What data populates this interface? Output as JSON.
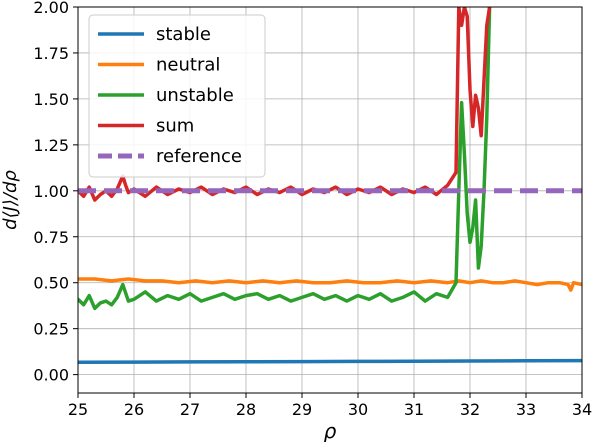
{
  "chart_data": {
    "type": "line",
    "title": "",
    "xlabel": "ρ",
    "ylabel": "d⟨J⟩/dρ",
    "xlim": [
      25,
      34
    ],
    "ylim": [
      -0.1,
      2.0
    ],
    "xticks": [
      25,
      26,
      27,
      28,
      29,
      30,
      31,
      32,
      33,
      34
    ],
    "yticks": [
      0.0,
      0.25,
      0.5,
      0.75,
      1.0,
      1.25,
      1.5,
      1.75,
      2.0
    ],
    "xtick_labels": [
      "25",
      "26",
      "27",
      "28",
      "29",
      "30",
      "31",
      "32",
      "33",
      "34"
    ],
    "ytick_labels": [
      "0.00",
      "0.25",
      "0.50",
      "0.75",
      "1.00",
      "1.25",
      "1.50",
      "1.75",
      "2.00"
    ],
    "grid": true,
    "legend_position": "top-left",
    "series": [
      {
        "name": "stable",
        "color": "#1f77b4",
        "style": "solid",
        "x": [
          25.0,
          26.0,
          27.0,
          28.0,
          29.0,
          30.0,
          31.0,
          32.0,
          33.0,
          34.0
        ],
        "y": [
          0.067,
          0.068,
          0.069,
          0.07,
          0.071,
          0.072,
          0.073,
          0.074,
          0.075,
          0.076
        ]
      },
      {
        "name": "neutral",
        "color": "#ff7f0e",
        "style": "solid",
        "x": [
          25.0,
          25.3,
          25.6,
          25.9,
          26.2,
          26.5,
          26.8,
          27.1,
          27.4,
          27.7,
          28.0,
          28.3,
          28.6,
          28.9,
          29.2,
          29.5,
          29.8,
          30.1,
          30.4,
          30.7,
          31.0,
          31.3,
          31.6,
          31.8,
          32.0,
          32.2,
          32.4,
          32.6,
          32.8,
          33.0,
          33.2,
          33.4,
          33.6,
          33.75,
          33.8,
          33.85,
          34.0
        ],
        "y": [
          0.52,
          0.52,
          0.51,
          0.52,
          0.51,
          0.51,
          0.5,
          0.51,
          0.5,
          0.51,
          0.5,
          0.51,
          0.5,
          0.51,
          0.5,
          0.5,
          0.51,
          0.5,
          0.5,
          0.51,
          0.5,
          0.51,
          0.5,
          0.51,
          0.5,
          0.51,
          0.5,
          0.5,
          0.51,
          0.5,
          0.49,
          0.5,
          0.5,
          0.49,
          0.46,
          0.5,
          0.49
        ]
      },
      {
        "name": "unstable",
        "color": "#2ca02c",
        "style": "solid",
        "x": [
          25.0,
          25.1,
          25.2,
          25.3,
          25.4,
          25.5,
          25.6,
          25.7,
          25.8,
          25.9,
          26.0,
          26.2,
          26.4,
          26.6,
          26.8,
          27.0,
          27.2,
          27.4,
          27.6,
          27.8,
          28.0,
          28.2,
          28.4,
          28.6,
          28.8,
          29.0,
          29.2,
          29.4,
          29.6,
          29.8,
          30.0,
          30.2,
          30.4,
          30.6,
          30.8,
          31.0,
          31.2,
          31.4,
          31.6,
          31.75,
          31.8,
          31.85,
          31.9,
          31.95,
          32.0,
          32.05,
          32.1,
          32.15,
          32.2,
          32.25,
          32.3,
          32.35
        ],
        "y": [
          0.41,
          0.38,
          0.43,
          0.36,
          0.39,
          0.4,
          0.38,
          0.42,
          0.49,
          0.4,
          0.41,
          0.45,
          0.4,
          0.43,
          0.41,
          0.44,
          0.4,
          0.42,
          0.44,
          0.41,
          0.43,
          0.44,
          0.41,
          0.43,
          0.4,
          0.42,
          0.44,
          0.41,
          0.43,
          0.4,
          0.43,
          0.41,
          0.44,
          0.4,
          0.42,
          0.45,
          0.4,
          0.44,
          0.42,
          0.5,
          1.0,
          1.48,
          1.2,
          0.88,
          0.72,
          0.8,
          0.95,
          0.58,
          0.7,
          1.0,
          1.4,
          2.0
        ]
      },
      {
        "name": "sum",
        "color": "#d62728",
        "style": "solid",
        "x": [
          25.0,
          25.1,
          25.2,
          25.3,
          25.4,
          25.5,
          25.6,
          25.7,
          25.8,
          25.85,
          25.9,
          26.0,
          26.2,
          26.4,
          26.6,
          26.8,
          27.0,
          27.2,
          27.4,
          27.6,
          27.8,
          28.0,
          28.2,
          28.4,
          28.6,
          28.8,
          29.0,
          29.2,
          29.4,
          29.6,
          29.8,
          30.0,
          30.2,
          30.4,
          30.6,
          30.8,
          31.0,
          31.2,
          31.4,
          31.6,
          31.75,
          31.8,
          31.85,
          31.9,
          31.95,
          32.0,
          32.05,
          32.1,
          32.15,
          32.2,
          32.25,
          32.3,
          32.35
        ],
        "y": [
          1.0,
          0.97,
          1.02,
          0.95,
          0.98,
          1.0,
          0.97,
          1.01,
          1.08,
          1.03,
          0.99,
          1.01,
          0.97,
          1.02,
          0.98,
          1.01,
          0.99,
          1.02,
          0.98,
          1.01,
          0.99,
          1.02,
          0.98,
          1.01,
          0.99,
          1.02,
          0.98,
          1.01,
          0.99,
          1.02,
          0.98,
          1.01,
          0.99,
          1.02,
          0.98,
          1.01,
          0.99,
          1.02,
          0.98,
          1.03,
          1.1,
          2.0,
          1.9,
          2.0,
          1.95,
          1.55,
          1.35,
          1.52,
          1.45,
          1.3,
          1.6,
          1.9,
          2.0
        ]
      },
      {
        "name": "reference",
        "color": "#9467bd",
        "style": "dashed",
        "x": [
          25.0,
          34.0
        ],
        "y": [
          1.0,
          1.0
        ]
      }
    ]
  }
}
